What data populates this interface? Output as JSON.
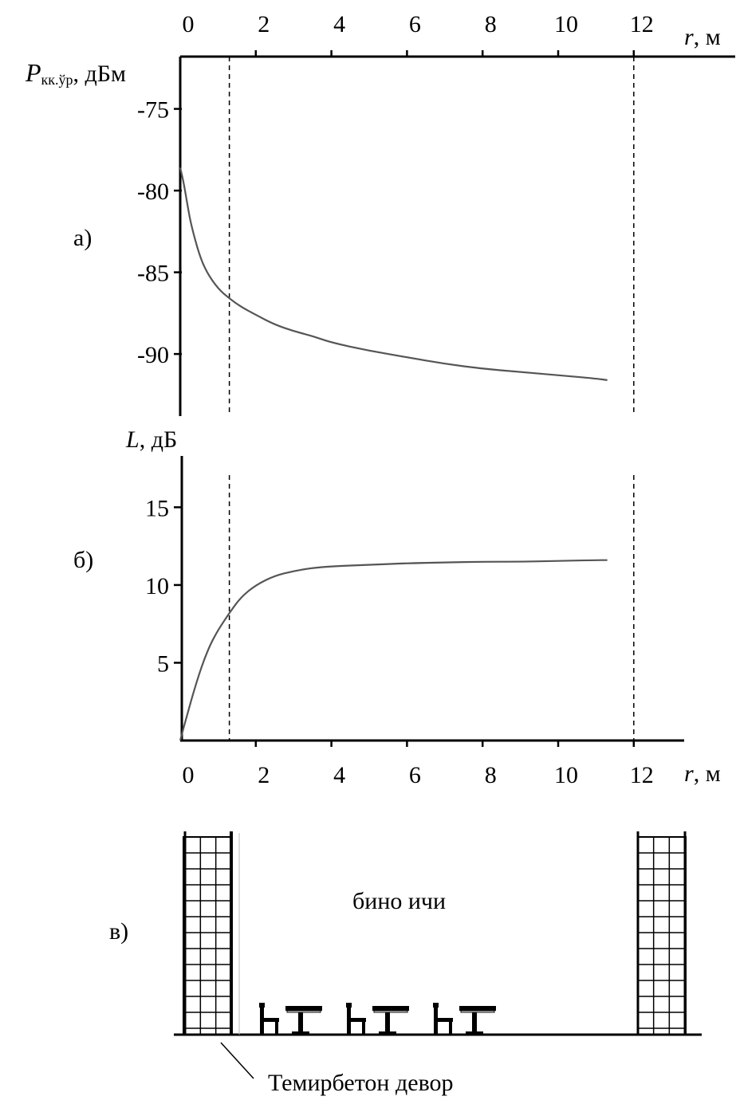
{
  "chart_data": [
    {
      "type": "line",
      "panel_label": "а)",
      "title": "",
      "xlabel": "r",
      "xlabel_unit": ", м",
      "ylabel": "P",
      "ylabel_sub": "кк.ўр",
      "ylabel_unit": ", дБм",
      "x_ticks": [
        "0",
        "2",
        "4",
        "6",
        "8",
        "10",
        "12"
      ],
      "y_ticks": [
        "-75",
        "-80",
        "-85",
        "-90"
      ],
      "xlim": [
        0,
        13.5
      ],
      "ylim": [
        -93.8,
        -71.8
      ],
      "grid": false,
      "reference_lines_x": [
        1.3,
        12
      ],
      "series": [
        {
          "x": [
            0,
            0.1,
            0.2,
            0.3,
            0.5,
            0.7,
            1.0,
            1.3,
            1.6,
            2.0,
            2.5,
            3.0,
            3.5,
            4.0,
            5.0,
            6.0,
            7.0,
            8.0,
            9.0,
            10.0,
            11.0,
            11.3
          ],
          "y": [
            -78.6,
            -79.6,
            -81.0,
            -82.2,
            -83.9,
            -85.0,
            -86.0,
            -86.6,
            -87.1,
            -87.6,
            -88.2,
            -88.6,
            -88.9,
            -89.3,
            -89.8,
            -90.2,
            -90.6,
            -90.9,
            -91.1,
            -91.3,
            -91.5,
            -91.6
          ]
        }
      ]
    },
    {
      "type": "line",
      "panel_label": "б)",
      "title": "",
      "xlabel": "r",
      "xlabel_unit": ", м",
      "ylabel": "L",
      "ylabel_unit": ", дБ",
      "x_ticks": [
        "0",
        "2",
        "4",
        "6",
        "8",
        "10",
        "12"
      ],
      "y_ticks": [
        "5",
        "10",
        "15"
      ],
      "xlim": [
        0,
        13.5
      ],
      "ylim": [
        0,
        18.3
      ],
      "grid": false,
      "reference_lines_x": [
        1.3,
        12
      ],
      "series": [
        {
          "x": [
            0,
            0.2,
            0.4,
            0.6,
            0.8,
            1.0,
            1.3,
            1.6,
            2.0,
            2.5,
            3.0,
            3.5,
            4.0,
            5.0,
            6.0,
            7.0,
            8.0,
            9.0,
            10.0,
            11.0,
            11.3
          ],
          "y": [
            0,
            1.8,
            3.5,
            5.0,
            6.2,
            7.1,
            8.2,
            9.2,
            10.0,
            10.6,
            10.9,
            11.1,
            11.2,
            11.3,
            11.4,
            11.45,
            11.5,
            11.5,
            11.55,
            11.6,
            11.6
          ]
        }
      ]
    }
  ],
  "room_diagram": {
    "panel_label": "в)",
    "interior_label": "бино ичи",
    "wall_label": "Темирбетон девор",
    "desk_sets": 3
  },
  "colors": {
    "line": "#555555",
    "axis": "#000000"
  }
}
